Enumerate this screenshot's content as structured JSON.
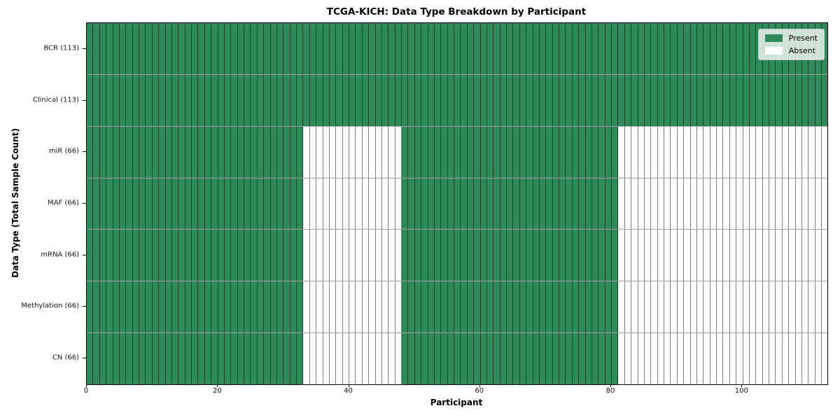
{
  "title": "TCGA-KICH: Data Type Breakdown by Participant",
  "x_axis": {
    "label": "Participant",
    "ticks": [
      0,
      20,
      40,
      60,
      80,
      100
    ]
  },
  "y_axis": {
    "label": "Data Type (Total Sample Count)"
  },
  "legend": {
    "present_label": "Present",
    "absent_label": "Absent"
  },
  "colors": {
    "present": "#2e8b57",
    "absent": "#ffffff"
  },
  "chart_data": {
    "type": "heatmap",
    "title": "TCGA-KICH: Data Type Breakdown by Participant",
    "xlabel": "Participant",
    "ylabel": "Data Type (Total Sample Count)",
    "x_range": [
      0,
      113
    ],
    "n_participants": 113,
    "grid": true,
    "legend_position": "upper right",
    "legend_entries": [
      "Present",
      "Absent"
    ],
    "rows": [
      {
        "label": "BCR (113)",
        "data_type": "BCR",
        "total_sample_count": 113,
        "present_ranges": [
          [
            0,
            113
          ]
        ]
      },
      {
        "label": "Clinical (113)",
        "data_type": "Clinical",
        "total_sample_count": 113,
        "present_ranges": [
          [
            0,
            113
          ]
        ]
      },
      {
        "label": "miR (66)",
        "data_type": "miR",
        "total_sample_count": 66,
        "present_ranges": [
          [
            0,
            33
          ],
          [
            48,
            81
          ]
        ]
      },
      {
        "label": "MAF (66)",
        "data_type": "MAF",
        "total_sample_count": 66,
        "present_ranges": [
          [
            0,
            33
          ],
          [
            48,
            81
          ]
        ]
      },
      {
        "label": "mRNA (66)",
        "data_type": "mRNA",
        "total_sample_count": 66,
        "present_ranges": [
          [
            0,
            33
          ],
          [
            48,
            81
          ]
        ]
      },
      {
        "label": "Methylation (66)",
        "data_type": "Methylation",
        "total_sample_count": 66,
        "present_ranges": [
          [
            0,
            33
          ],
          [
            48,
            81
          ]
        ]
      },
      {
        "label": "CN (66)",
        "data_type": "CN",
        "total_sample_count": 66,
        "present_ranges": [
          [
            0,
            33
          ],
          [
            48,
            81
          ]
        ]
      }
    ]
  }
}
